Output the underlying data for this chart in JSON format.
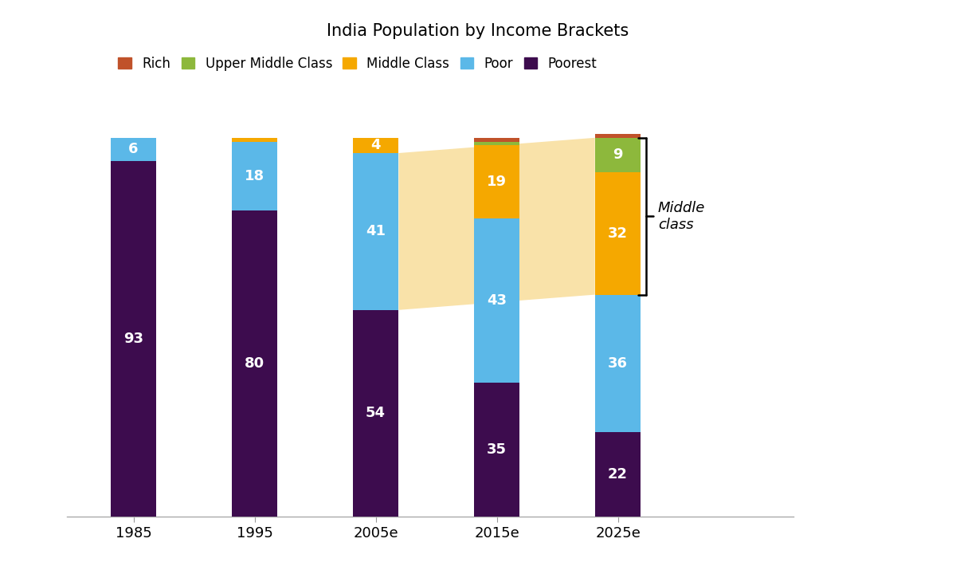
{
  "title": "India Population by Income Brackets",
  "categories": [
    "1985",
    "1995",
    "2005e",
    "2015e",
    "2025e"
  ],
  "segments": {
    "Poorest": [
      93,
      80,
      54,
      35,
      22
    ],
    "Poor": [
      6,
      18,
      41,
      43,
      36
    ],
    "Middle Class": [
      0,
      1,
      4,
      19,
      32
    ],
    "Upper Middle Class": [
      0,
      0,
      0,
      1,
      9
    ],
    "Rich": [
      0,
      0,
      0,
      1,
      1
    ]
  },
  "colors": {
    "Poorest": "#3D0C4E",
    "Poor": "#5BB8E8",
    "Middle Class": "#F5A800",
    "Upper Middle Class": "#8DB83C",
    "Rich": "#C0522A"
  },
  "legend_order": [
    "Rich",
    "Upper Middle Class",
    "Middle Class",
    "Poor",
    "Poorest"
  ],
  "bar_width": 0.38,
  "background_color": "#FFFFFF",
  "text_color": "#FFFFFF",
  "title_fontsize": 15,
  "label_fontsize": 13,
  "legend_fontsize": 12,
  "ylim": [
    0,
    108
  ],
  "highlight_shape_color": "#F9DFA0",
  "middle_class_bracket_text": "Middle\nclass"
}
